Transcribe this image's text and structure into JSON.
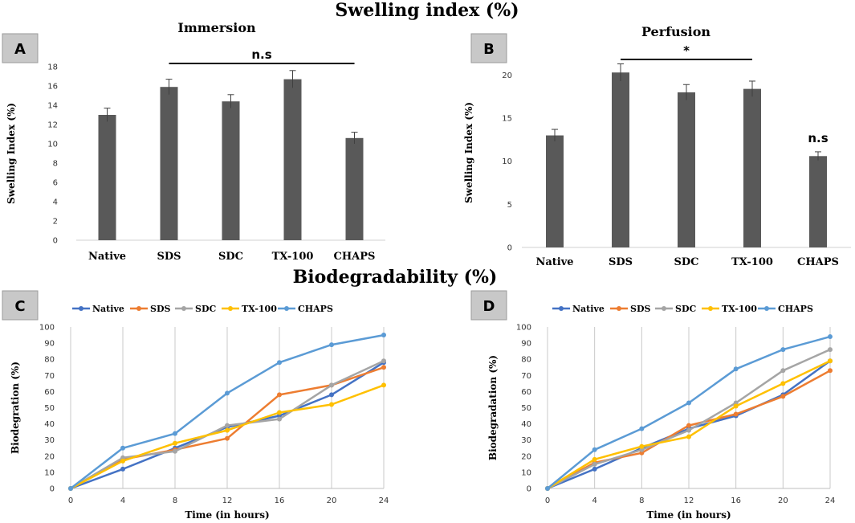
{
  "titles": {
    "swelling": "Swelling index (%)",
    "biodeg": "Biodegradability (%)"
  },
  "panels": {
    "a": "A",
    "b": "B",
    "c": "C",
    "d": "D"
  },
  "colors": {
    "bar": "#595959",
    "Native": "#4472C4",
    "SDS": "#ED7D31",
    "SDC": "#A5A5A5",
    "TX-100": "#FFC000",
    "CHAPS": "#5B9BD5"
  },
  "chart_data": [
    {
      "id": "immersion",
      "type": "bar",
      "title": "Immersion",
      "categories": [
        "Native",
        "SDS",
        "SDC",
        "TX-100",
        "CHAPS"
      ],
      "values": [
        13.0,
        15.9,
        14.4,
        16.7,
        10.6
      ],
      "errors": [
        0.7,
        0.8,
        0.7,
        0.9,
        0.6
      ],
      "ylabel": "Swelling Index  (%)",
      "xlabel": "",
      "ylim": [
        0,
        18
      ],
      "yticks": [
        0,
        2,
        4,
        6,
        8,
        10,
        12,
        14,
        16,
        18
      ],
      "annotations": [
        {
          "text": "n.s",
          "from": "SDS",
          "to": "CHAPS"
        }
      ]
    },
    {
      "id": "perfusion",
      "type": "bar",
      "title": "Perfusion",
      "categories": [
        "Native",
        "SDS",
        "SDC",
        "TX-100",
        "CHAPS"
      ],
      "values": [
        13.0,
        20.3,
        18.0,
        18.4,
        10.6
      ],
      "errors": [
        0.7,
        1.0,
        0.9,
        0.9,
        0.5
      ],
      "ylabel": "Swelling  Index  (%)",
      "xlabel": "",
      "ylim": [
        0,
        22
      ],
      "yticks": [
        0,
        5,
        10,
        15,
        20
      ],
      "annotations": [
        {
          "text": "*",
          "from": "SDS",
          "to": "TX-100"
        },
        {
          "text": "n.s",
          "at": "CHAPS"
        }
      ]
    },
    {
      "id": "biodeg-c",
      "type": "line",
      "title": "",
      "x": [
        0,
        4,
        8,
        12,
        16,
        20,
        24
      ],
      "xlabel": "Time (in hours)",
      "ylabel": "Biodegration  (%)",
      "ylim": [
        0,
        100
      ],
      "yticks": [
        0,
        10,
        20,
        30,
        40,
        50,
        60,
        70,
        80,
        90,
        100
      ],
      "series": [
        {
          "name": "Native",
          "values": [
            0,
            12,
            25,
            38,
            45,
            58,
            78
          ]
        },
        {
          "name": "SDS",
          "values": [
            0,
            18,
            24,
            31,
            58,
            64,
            75
          ]
        },
        {
          "name": "SDC",
          "values": [
            0,
            19,
            23,
            39,
            43,
            64,
            79
          ]
        },
        {
          "name": "TX-100",
          "values": [
            0,
            17,
            28,
            36,
            47,
            52,
            64
          ]
        },
        {
          "name": "CHAPS",
          "values": [
            0,
            25,
            34,
            59,
            78,
            89,
            95
          ]
        }
      ]
    },
    {
      "id": "biodeg-d",
      "type": "line",
      "title": "",
      "x": [
        0,
        4,
        8,
        12,
        16,
        20,
        24
      ],
      "xlabel": "Time (in hours)",
      "ylabel": "Biodegradation  (%)",
      "ylim": [
        0,
        100
      ],
      "yticks": [
        0,
        10,
        20,
        30,
        40,
        50,
        60,
        70,
        80,
        90,
        100
      ],
      "series": [
        {
          "name": "Native",
          "values": [
            0,
            12,
            25,
            37,
            45,
            58,
            79
          ]
        },
        {
          "name": "SDS",
          "values": [
            0,
            16,
            22,
            39,
            46,
            57,
            73
          ]
        },
        {
          "name": "SDC",
          "values": [
            0,
            15,
            24,
            36,
            53,
            73,
            86
          ]
        },
        {
          "name": "TX-100",
          "values": [
            0,
            18,
            26,
            32,
            51,
            65,
            79
          ]
        },
        {
          "name": "CHAPS",
          "values": [
            0,
            24,
            37,
            53,
            74,
            86,
            94
          ]
        }
      ]
    }
  ]
}
